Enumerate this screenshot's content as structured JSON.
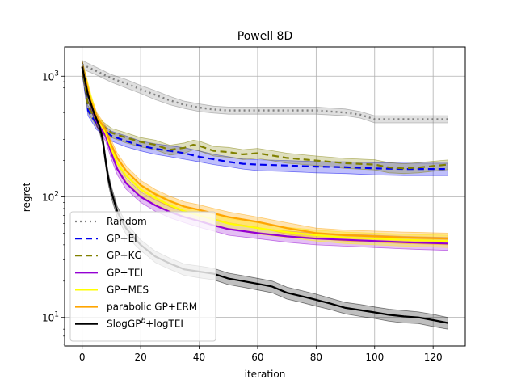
{
  "chart_data": {
    "type": "line",
    "title": "Powell 8D",
    "xlabel": "iteration",
    "ylabel": "regret",
    "xlim": [
      -6,
      131
    ],
    "ylim": [
      5.8,
      1750
    ],
    "yscale": "log",
    "grid": true,
    "legend_position": "lower-left",
    "x_ticks": [
      0,
      20,
      40,
      60,
      80,
      100,
      120
    ],
    "x_tick_labels": [
      "0",
      "20",
      "40",
      "60",
      "80",
      "100",
      "120"
    ],
    "y_ticks": [
      10,
      100,
      1000
    ],
    "y_tick_labels": [
      {
        "base": "10",
        "exp": "1"
      },
      {
        "base": "10",
        "exp": "2"
      },
      {
        "base": "10",
        "exp": "3"
      }
    ],
    "series": [
      {
        "name": "Random",
        "color": "#808080",
        "dash": "2,4",
        "band_opacity": 0.25,
        "x": [
          0,
          5,
          10,
          15,
          20,
          25,
          30,
          35,
          40,
          45,
          50,
          60,
          70,
          80,
          90,
          95,
          100,
          110,
          125
        ],
        "y": [
          1250,
          1100,
          960,
          870,
          780,
          700,
          630,
          580,
          550,
          530,
          520,
          520,
          520,
          520,
          500,
          480,
          440,
          440,
          440
        ],
        "lower": [
          1150,
          1020,
          890,
          800,
          720,
          640,
          580,
          540,
          510,
          495,
          485,
          485,
          485,
          485,
          470,
          450,
          410,
          410,
          410
        ],
        "upper": [
          1350,
          1180,
          1030,
          940,
          840,
          760,
          680,
          620,
          590,
          565,
          555,
          555,
          555,
          555,
          535,
          510,
          470,
          470,
          470
        ]
      },
      {
        "name": "GP+EI",
        "color": "#0000ee",
        "dash": "8,5",
        "band_opacity": 0.25,
        "x": [
          0,
          2,
          5,
          10,
          15,
          20,
          25,
          30,
          35,
          40,
          45,
          50,
          55,
          60,
          70,
          80,
          90,
          100,
          110,
          125
        ],
        "y": [
          1200,
          520,
          400,
          320,
          290,
          265,
          250,
          240,
          230,
          215,
          205,
          195,
          188,
          185,
          182,
          178,
          176,
          172,
          170,
          170
        ],
        "lower": [
          1050,
          470,
          360,
          290,
          260,
          240,
          225,
          215,
          205,
          195,
          185,
          178,
          170,
          165,
          162,
          158,
          156,
          152,
          150,
          150
        ],
        "upper": [
          1350,
          570,
          440,
          350,
          320,
          290,
          275,
          265,
          255,
          240,
          225,
          215,
          206,
          203,
          200,
          196,
          195,
          192,
          190,
          190
        ]
      },
      {
        "name": "GP+KG",
        "color": "#808000",
        "dash": "8,5",
        "band_opacity": 0.25,
        "x": [
          0,
          2,
          5,
          10,
          15,
          20,
          25,
          30,
          35,
          38,
          40,
          45,
          50,
          55,
          60,
          65,
          70,
          80,
          90,
          100,
          105,
          110,
          115,
          120,
          125
        ],
        "y": [
          1200,
          560,
          420,
          340,
          310,
          285,
          270,
          245,
          255,
          270,
          265,
          240,
          235,
          225,
          230,
          220,
          210,
          200,
          190,
          185,
          175,
          172,
          175,
          180,
          185
        ],
        "lower": [
          1050,
          500,
          380,
          310,
          280,
          260,
          245,
          222,
          230,
          245,
          240,
          218,
          213,
          204,
          208,
          199,
          190,
          182,
          172,
          167,
          158,
          156,
          158,
          163,
          168
        ],
        "upper": [
          1350,
          620,
          460,
          370,
          340,
          310,
          295,
          268,
          280,
          295,
          290,
          262,
          257,
          246,
          252,
          241,
          230,
          218,
          208,
          203,
          192,
          188,
          192,
          197,
          202
        ]
      },
      {
        "name": "GP+TEI",
        "color": "#9400d3",
        "dash": "",
        "band_opacity": 0.25,
        "x": [
          0,
          3,
          5,
          8,
          10,
          12,
          15,
          20,
          25,
          30,
          35,
          40,
          45,
          50,
          60,
          70,
          80,
          90,
          100,
          110,
          125
        ],
        "y": [
          1200,
          600,
          420,
          320,
          230,
          170,
          130,
          100,
          85,
          75,
          68,
          63,
          58,
          54,
          50,
          47,
          45,
          44,
          43,
          42,
          41
        ],
        "lower": [
          1050,
          540,
          380,
          290,
          205,
          152,
          116,
          90,
          76,
          67,
          61,
          56,
          52,
          48,
          45,
          42,
          40,
          39,
          38,
          37,
          36
        ],
        "upper": [
          1350,
          660,
          460,
          350,
          255,
          188,
          144,
          110,
          94,
          83,
          75,
          70,
          64,
          60,
          55,
          52,
          50,
          49,
          48,
          47,
          46
        ]
      },
      {
        "name": "GP+MES",
        "color": "#ffff00",
        "dash": "",
        "band_opacity": 0.35,
        "x": [
          0,
          3,
          5,
          8,
          10,
          12,
          15,
          20,
          25,
          30,
          35,
          40,
          45,
          50,
          60,
          70,
          80,
          90,
          100,
          110,
          125
        ],
        "y": [
          1200,
          650,
          450,
          340,
          250,
          190,
          150,
          115,
          98,
          85,
          76,
          70,
          65,
          60,
          55,
          51,
          48,
          46,
          45,
          44,
          43
        ],
        "lower": [
          1050,
          590,
          410,
          310,
          225,
          170,
          135,
          103,
          88,
          76,
          68,
          63,
          58,
          54,
          49,
          46,
          43,
          41,
          40,
          39,
          38
        ],
        "upper": [
          1350,
          710,
          490,
          370,
          275,
          210,
          165,
          127,
          108,
          94,
          84,
          77,
          72,
          66,
          61,
          56,
          53,
          51,
          50,
          49,
          48
        ]
      },
      {
        "name": "parabolic GP+ERM",
        "color": "#ffa500",
        "dash": "",
        "band_opacity": 0.3,
        "x": [
          0,
          3,
          5,
          8,
          10,
          12,
          15,
          20,
          25,
          30,
          35,
          40,
          45,
          50,
          60,
          70,
          80,
          90,
          100,
          110,
          125
        ],
        "y": [
          1200,
          620,
          460,
          360,
          270,
          210,
          165,
          125,
          105,
          92,
          83,
          78,
          73,
          68,
          62,
          55,
          50,
          48,
          47,
          46,
          45
        ],
        "lower": [
          1050,
          560,
          420,
          330,
          245,
          190,
          149,
          113,
          95,
          83,
          75,
          70,
          66,
          61,
          56,
          49,
          45,
          43,
          42,
          41,
          40
        ],
        "upper": [
          1350,
          680,
          500,
          390,
          295,
          230,
          181,
          137,
          115,
          101,
          91,
          86,
          80,
          75,
          68,
          61,
          55,
          53,
          52,
          51,
          50
        ]
      },
      {
        "name": "SlogGP^b+logTEI",
        "color": "#000000",
        "dash": "",
        "band_opacity": 0.25,
        "x": [
          0,
          2,
          4,
          6,
          7,
          8,
          9,
          10,
          12,
          15,
          18,
          20,
          25,
          30,
          35,
          40,
          45,
          50,
          55,
          60,
          65,
          70,
          75,
          80,
          85,
          90,
          95,
          100,
          105,
          110,
          115,
          120,
          125
        ],
        "y": [
          1200,
          700,
          500,
          380,
          300,
          200,
          140,
          110,
          75,
          55,
          45,
          40,
          32,
          28,
          25,
          24,
          23,
          21,
          20,
          19,
          18,
          16,
          15,
          14,
          13,
          12,
          11.5,
          11,
          10.5,
          10.2,
          10,
          9.5,
          9
        ],
        "lower": [
          1050,
          620,
          450,
          340,
          270,
          180,
          125,
          98,
          67,
          49,
          40,
          36,
          28.5,
          25,
          22.3,
          21.3,
          20.5,
          18.7,
          17.8,
          16.9,
          16,
          14.2,
          13.3,
          12.4,
          11.6,
          10.7,
          10.2,
          9.8,
          9.3,
          9,
          8.9,
          8.4,
          8
        ],
        "upper": [
          1350,
          780,
          550,
          420,
          330,
          220,
          155,
          122,
          83,
          61,
          50,
          44,
          35.5,
          31,
          27.7,
          26.7,
          25.5,
          23.3,
          22.2,
          21.1,
          20,
          17.8,
          16.7,
          15.6,
          14.4,
          13.3,
          12.8,
          12.2,
          11.7,
          11.4,
          11.1,
          10.6,
          10
        ]
      }
    ],
    "legend": [
      {
        "label": "Random",
        "color": "#808080",
        "dash": "2,4"
      },
      {
        "label": "GP+EI",
        "color": "#0000ee",
        "dash": "8,5"
      },
      {
        "label": "GP+KG",
        "color": "#808000",
        "dash": "8,5"
      },
      {
        "label": "GP+TEI",
        "color": "#9400d3",
        "dash": ""
      },
      {
        "label": "GP+MES",
        "color": "#ffff00",
        "dash": ""
      },
      {
        "label": "parabolic GP+ERM",
        "color": "#ffa500",
        "dash": ""
      },
      {
        "label_base": "SlogGP",
        "label_sup": "b",
        "label_tail": "+logTEI",
        "color": "#000000",
        "dash": ""
      }
    ]
  }
}
